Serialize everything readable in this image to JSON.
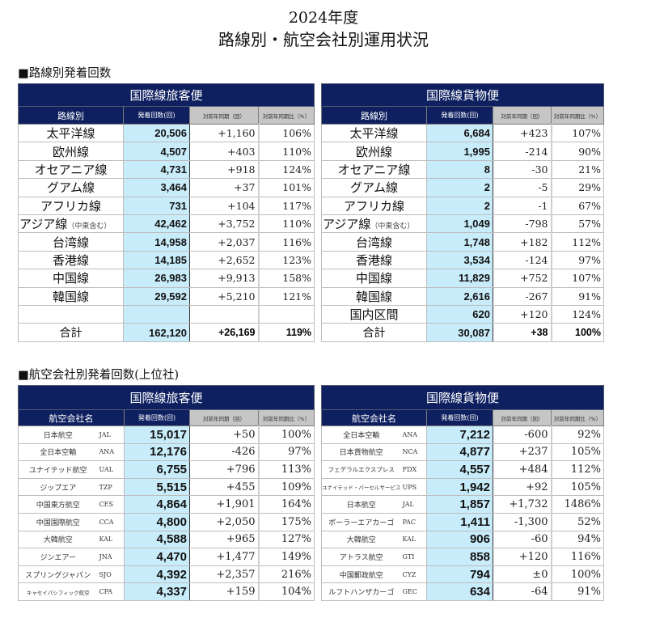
{
  "header": {
    "year": "2024年度",
    "title": "路線別・航空会社別運用状況"
  },
  "route_section": {
    "label": "■路線別発着回数",
    "passenger": {
      "band": "国際線旅客便",
      "columns": [
        "路線別",
        "発着回数(回)",
        "対前年同期（回）",
        "対前年同期比（%）"
      ],
      "rows": [
        {
          "route": "太平洋線",
          "note": "",
          "count": "20,506",
          "diff": "+1,160",
          "ratio": "106%"
        },
        {
          "route": "欧州線",
          "note": "",
          "count": "4,507",
          "diff": "+403",
          "ratio": "110%"
        },
        {
          "route": "オセアニア線",
          "note": "",
          "count": "4,731",
          "diff": "+918",
          "ratio": "124%"
        },
        {
          "route": "グアム線",
          "note": "",
          "count": "3,464",
          "diff": "+37",
          "ratio": "101%"
        },
        {
          "route": "アフリカ線",
          "note": "",
          "count": "731",
          "diff": "+104",
          "ratio": "117%"
        },
        {
          "route": "アジア線",
          "note": "（中東含む）",
          "count": "42,462",
          "diff": "+3,752",
          "ratio": "110%"
        },
        {
          "route": "台湾線",
          "note": "",
          "count": "14,958",
          "diff": "+2,037",
          "ratio": "116%"
        },
        {
          "route": "香港線",
          "note": "",
          "count": "14,185",
          "diff": "+2,652",
          "ratio": "123%"
        },
        {
          "route": "中国線",
          "note": "",
          "count": "26,983",
          "diff": "+9,913",
          "ratio": "158%"
        },
        {
          "route": "韓国線",
          "note": "",
          "count": "29,592",
          "diff": "+5,210",
          "ratio": "121%"
        },
        {
          "route": "",
          "note": "",
          "count": "",
          "diff": "",
          "ratio": ""
        }
      ],
      "total": {
        "label": "合計",
        "count": "162,120",
        "diff": "+26,169",
        "ratio": "119%"
      }
    },
    "cargo": {
      "band": "国際線貨物便",
      "columns": [
        "路線別",
        "発着回数(回)",
        "対前年同期（回）",
        "対前年同期比（%）"
      ],
      "rows": [
        {
          "route": "太平洋線",
          "note": "",
          "count": "6,684",
          "diff": "+423",
          "ratio": "107%"
        },
        {
          "route": "欧州線",
          "note": "",
          "count": "1,995",
          "diff": "-214",
          "ratio": "90%"
        },
        {
          "route": "オセアニア線",
          "note": "",
          "count": "8",
          "diff": "-30",
          "ratio": "21%"
        },
        {
          "route": "グアム線",
          "note": "",
          "count": "2",
          "diff": "-5",
          "ratio": "29%"
        },
        {
          "route": "アフリカ線",
          "note": "",
          "count": "2",
          "diff": "-1",
          "ratio": "67%"
        },
        {
          "route": "アジア線",
          "note": "（中東含む）",
          "count": "1,049",
          "diff": "-798",
          "ratio": "57%"
        },
        {
          "route": "台湾線",
          "note": "",
          "count": "1,748",
          "diff": "+182",
          "ratio": "112%"
        },
        {
          "route": "香港線",
          "note": "",
          "count": "3,534",
          "diff": "-124",
          "ratio": "97%"
        },
        {
          "route": "中国線",
          "note": "",
          "count": "11,829",
          "diff": "+752",
          "ratio": "107%"
        },
        {
          "route": "韓国線",
          "note": "",
          "count": "2,616",
          "diff": "-267",
          "ratio": "91%"
        },
        {
          "route": "国内区間",
          "note": "",
          "count": "620",
          "diff": "+120",
          "ratio": "124%"
        }
      ],
      "total": {
        "label": "合計",
        "count": "30,087",
        "diff": "+38",
        "ratio": "100%"
      }
    }
  },
  "airline_section": {
    "label": "■航空会社別発着回数(上位社)",
    "passenger": {
      "band": "国際線旅客便",
      "columns": [
        "航空会社名",
        "発着回数(回)",
        "対前年同期（回）",
        "対前年同期比（%）"
      ],
      "rows": [
        {
          "name": "日本航空",
          "code": "JAL",
          "count": "15,017",
          "diff": "+50",
          "ratio": "100%"
        },
        {
          "name": "全日本空輸",
          "code": "ANA",
          "count": "12,176",
          "diff": "-426",
          "ratio": "97%"
        },
        {
          "name": "ユナイテッド航空",
          "code": "UAL",
          "count": "6,755",
          "diff": "+796",
          "ratio": "113%"
        },
        {
          "name": "ジップエア",
          "code": "TZP",
          "count": "5,515",
          "diff": "+455",
          "ratio": "109%"
        },
        {
          "name": "中国東方航空",
          "code": "CES",
          "count": "4,864",
          "diff": "+1,901",
          "ratio": "164%"
        },
        {
          "name": "中国国際航空",
          "code": "CCA",
          "count": "4,800",
          "diff": "+2,050",
          "ratio": "175%"
        },
        {
          "name": "大韓航空",
          "code": "KAL",
          "count": "4,588",
          "diff": "+965",
          "ratio": "127%"
        },
        {
          "name": "ジンエアー",
          "code": "JNA",
          "count": "4,470",
          "diff": "+1,477",
          "ratio": "149%"
        },
        {
          "name": "スプリングジャパン",
          "code": "SJO",
          "count": "4,392",
          "diff": "+2,357",
          "ratio": "216%"
        },
        {
          "name": "キャセイパシフィック航空",
          "code": "CPA",
          "count": "4,337",
          "diff": "+159",
          "ratio": "104%"
        }
      ]
    },
    "cargo": {
      "band": "国際線貨物便",
      "columns": [
        "航空会社名",
        "発着回数(回)",
        "対前年同期（回）",
        "対前年同期比（%）"
      ],
      "rows": [
        {
          "name": "全日本空輸",
          "code": "ANA",
          "count": "7,212",
          "diff": "-600",
          "ratio": "92%"
        },
        {
          "name": "日本貨物航空",
          "code": "NCA",
          "count": "4,877",
          "diff": "+237",
          "ratio": "105%"
        },
        {
          "name": "フェデラルエクスプレス",
          "code": "FDX",
          "count": "4,557",
          "diff": "+484",
          "ratio": "112%"
        },
        {
          "name": "ユナイテッド・パーセルサービス",
          "code": "UPS",
          "count": "1,942",
          "diff": "+92",
          "ratio": "105%"
        },
        {
          "name": "日本航空",
          "code": "JAL",
          "count": "1,857",
          "diff": "+1,732",
          "ratio": "1486%"
        },
        {
          "name": "ポーラーエアカーゴ",
          "code": "PAC",
          "count": "1,411",
          "diff": "-1,300",
          "ratio": "52%"
        },
        {
          "name": "大韓航空",
          "code": "KAL",
          "count": "906",
          "diff": "-60",
          "ratio": "94%"
        },
        {
          "name": "アトラス航空",
          "code": "GTI",
          "count": "858",
          "diff": "+120",
          "ratio": "116%"
        },
        {
          "name": "中国郵政航空",
          "code": "CYZ",
          "count": "794",
          "diff": "±0",
          "ratio": "100%"
        },
        {
          "name": "ルフトハンザカーゴ",
          "code": "GEC",
          "count": "634",
          "diff": "-64",
          "ratio": "91%"
        }
      ]
    }
  }
}
